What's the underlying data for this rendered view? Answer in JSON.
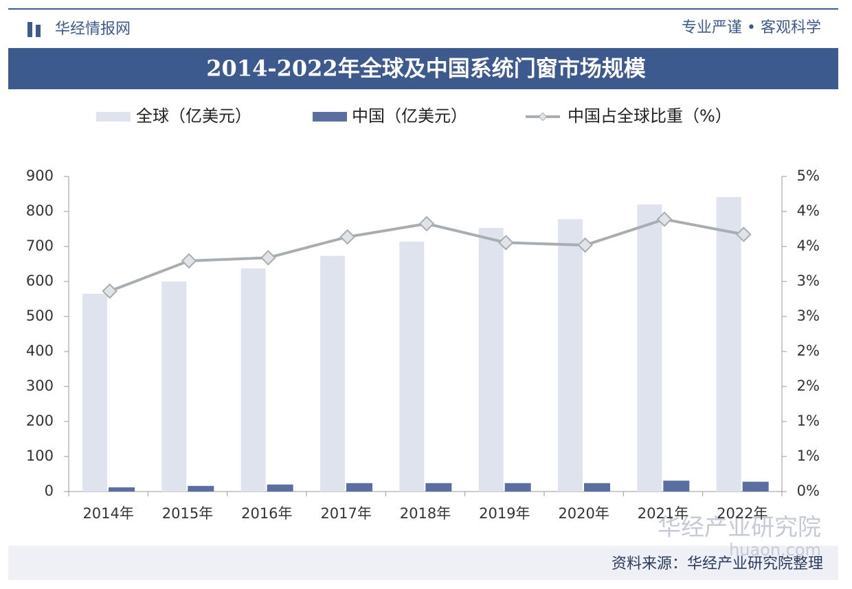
{
  "header": {
    "brand": "华经情报网",
    "slogan": "专业严谨 • 客观科学"
  },
  "chart_data": {
    "type": "bar",
    "title": "2014-2022年全球及中国系统门窗市场规模",
    "categories": [
      "2014年",
      "2015年",
      "2016年",
      "2017年",
      "2018年",
      "2019年",
      "2020年",
      "2021年",
      "2022年"
    ],
    "series": [
      {
        "name": "全球（亿美元）",
        "color": "#dfe3ee",
        "values": [
          565,
          600,
          637,
          673,
          714,
          753,
          778,
          820,
          841
        ]
      },
      {
        "name": "中国（亿美元）",
        "color": "#5a6fa0",
        "values": [
          12,
          16,
          20,
          24,
          24,
          24,
          24,
          31,
          28
        ]
      },
      {
        "name": "中国占全球比重（%）",
        "type": "line",
        "axis": "y2",
        "color": "#a7adb1",
        "values": [
          3.18,
          3.66,
          3.71,
          4.04,
          4.25,
          3.95,
          3.91,
          4.32,
          4.08
        ]
      }
    ],
    "ylim": [
      0,
      900
    ],
    "yticks": [
      0,
      100,
      200,
      300,
      400,
      500,
      600,
      700,
      800,
      900
    ],
    "y2lim": [
      0,
      5
    ],
    "y2ticks": [
      {
        "value": 0,
        "label": "0%"
      },
      {
        "value": 0.556,
        "label": "1%"
      },
      {
        "value": 1.111,
        "label": "1%"
      },
      {
        "value": 1.667,
        "label": "2%"
      },
      {
        "value": 2.222,
        "label": "2%"
      },
      {
        "value": 2.778,
        "label": "3%"
      },
      {
        "value": 3.333,
        "label": "3%"
      },
      {
        "value": 3.889,
        "label": "4%"
      },
      {
        "value": 4.444,
        "label": "4%"
      },
      {
        "value": 5,
        "label": "5%"
      }
    ],
    "grid": false
  },
  "footer": {
    "source": "资料来源：华经产业研究院整理",
    "logo": "华经产业研究院",
    "site": "huaon.com"
  }
}
